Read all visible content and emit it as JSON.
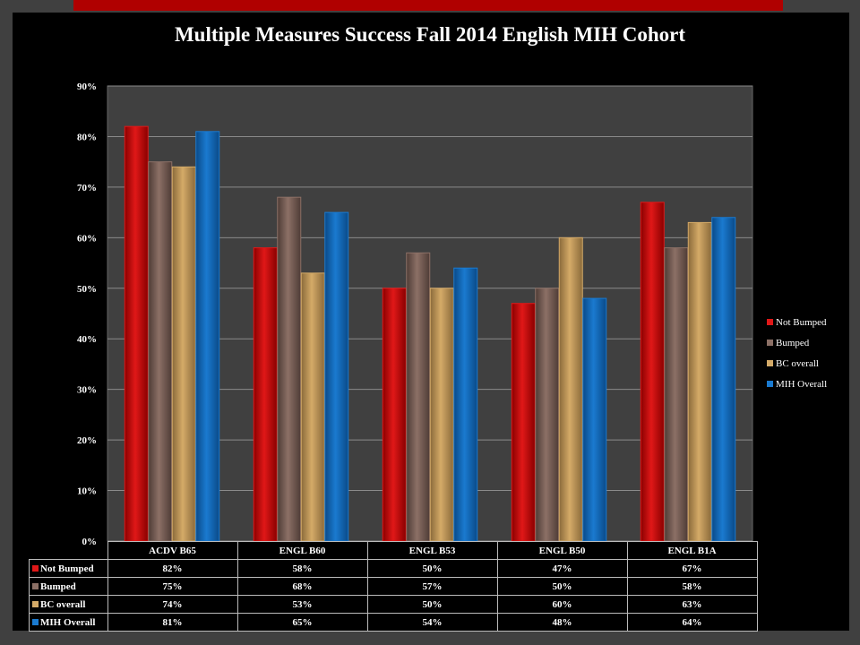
{
  "title": "Multiple Measures Success Fall 2014 English MIH Cohort",
  "colors": {
    "background": "#000000",
    "accent": "#b00000",
    "text": "#ffffff"
  },
  "chart_data": {
    "type": "bar",
    "title": "Multiple Measures Success Fall 2014 English MIH Cohort",
    "categories": [
      "ACDV B65",
      "ENGL B60",
      "ENGL B53",
      "ENGL B50",
      "ENGL B1A"
    ],
    "series": [
      {
        "name": "Not Bumped",
        "values": [
          82,
          58,
          50,
          47,
          67
        ],
        "labels": [
          "82%",
          "58%",
          "50%",
          "47%",
          "67%"
        ],
        "color": "#e01818"
      },
      {
        "name": "Bumped",
        "values": [
          75,
          68,
          57,
          50,
          58
        ],
        "labels": [
          "75%",
          "68%",
          "57%",
          "50%",
          "58%"
        ],
        "color": "#8c7066"
      },
      {
        "name": "BC overall",
        "values": [
          74,
          53,
          50,
          60,
          63
        ],
        "labels": [
          "74%",
          "53%",
          "50%",
          "60%",
          "63%"
        ],
        "color": "#d4aa68"
      },
      {
        "name": "MIH Overall",
        "values": [
          81,
          65,
          54,
          48,
          64
        ],
        "labels": [
          "81%",
          "65%",
          "54%",
          "48%",
          "64%"
        ],
        "color": "#1a7ad0"
      }
    ],
    "yticks": [
      "0%",
      "10%",
      "20%",
      "30%",
      "40%",
      "50%",
      "60%",
      "70%",
      "80%",
      "90%"
    ],
    "ylim": [
      0,
      90
    ],
    "grid": true,
    "legend": "right",
    "data_table": true
  }
}
